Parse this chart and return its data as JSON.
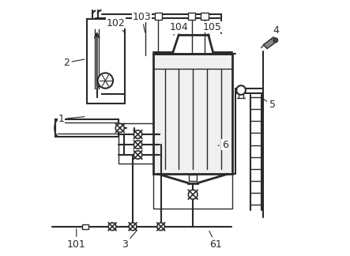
{
  "bg_color": "#ffffff",
  "lc": "#2a2a2a",
  "gray": "#777777",
  "figsize": [
    4.43,
    3.24
  ],
  "dpi": 100,
  "labels": {
    "1": [
      0.055,
      0.535,
      0.155,
      0.545
    ],
    "2": [
      0.075,
      0.755,
      0.155,
      0.77
    ],
    "3": [
      0.305,
      0.045,
      0.355,
      0.105
    ],
    "4": [
      0.895,
      0.88,
      0.875,
      0.845
    ],
    "5": [
      0.88,
      0.59,
      0.835,
      0.62
    ],
    "6": [
      0.695,
      0.435,
      0.66,
      0.43
    ],
    "61": [
      0.66,
      0.045,
      0.63,
      0.105
    ],
    "101": [
      0.115,
      0.045,
      0.115,
      0.115
    ],
    "102": [
      0.27,
      0.91,
      0.31,
      0.865
    ],
    "103": [
      0.37,
      0.935,
      0.385,
      0.865
    ],
    "104": [
      0.515,
      0.895,
      0.49,
      0.855
    ],
    "105": [
      0.645,
      0.895,
      0.62,
      0.855
    ]
  }
}
